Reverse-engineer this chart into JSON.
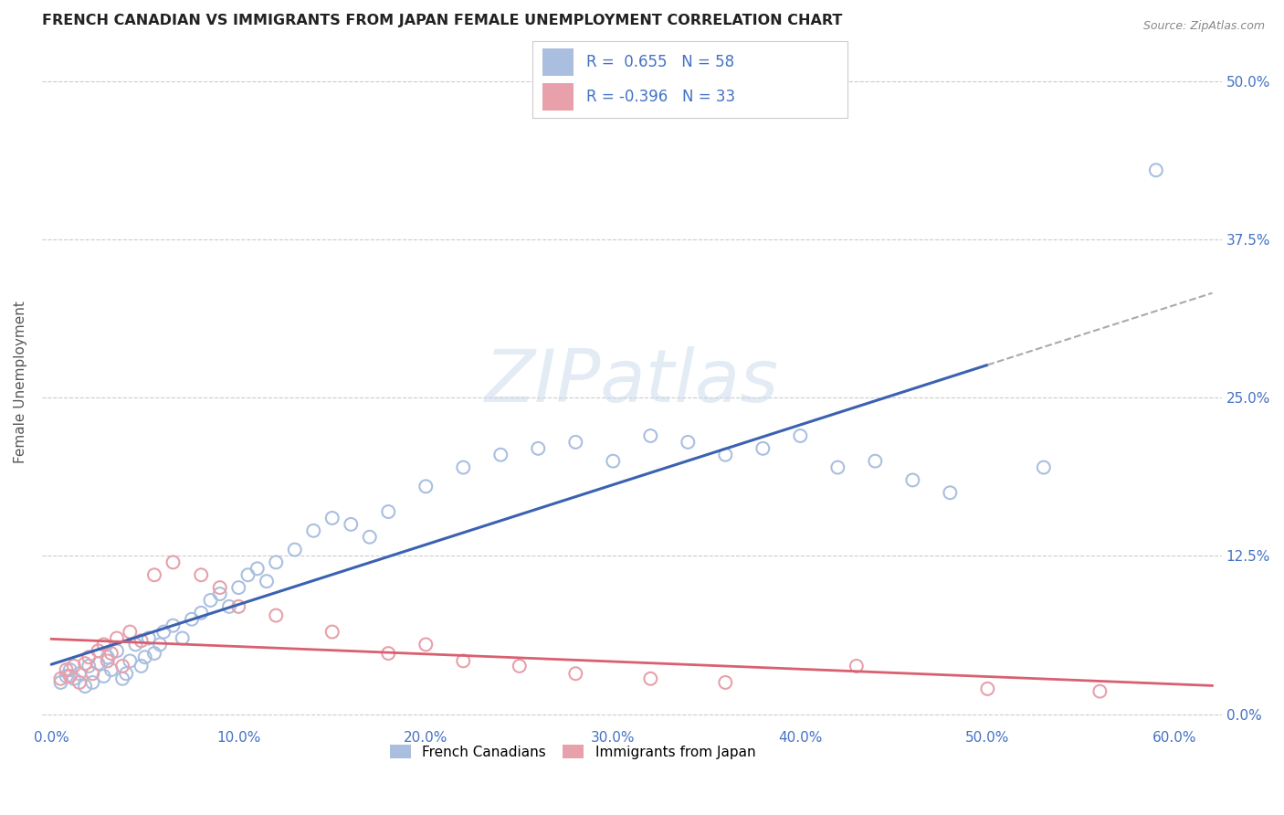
{
  "title": "FRENCH CANADIAN VS IMMIGRANTS FROM JAPAN FEMALE UNEMPLOYMENT CORRELATION CHART",
  "source": "Source: ZipAtlas.com",
  "ylabel": "Female Unemployment",
  "x_tick_labels": [
    "0.0%",
    "10.0%",
    "20.0%",
    "30.0%",
    "40.0%",
    "50.0%",
    "60.0%"
  ],
  "x_tick_values": [
    0.0,
    0.1,
    0.2,
    0.3,
    0.4,
    0.5,
    0.6
  ],
  "y_tick_labels": [
    "0.0%",
    "12.5%",
    "25.0%",
    "37.5%",
    "50.0%"
  ],
  "y_tick_values": [
    0.0,
    0.125,
    0.25,
    0.375,
    0.5
  ],
  "xlim": [
    -0.005,
    0.625
  ],
  "ylim": [
    -0.01,
    0.535
  ],
  "legend_bottom_labels": [
    "French Canadians",
    "Immigrants from Japan"
  ],
  "fc_color": "#aabfdf",
  "jp_color": "#e8a0aa",
  "fc_line_color": "#3a62b0",
  "jp_line_color": "#d96070",
  "grid_color": "#cccccc",
  "fc_scatter_x": [
    0.005,
    0.008,
    0.01,
    0.012,
    0.015,
    0.018,
    0.02,
    0.022,
    0.025,
    0.028,
    0.03,
    0.032,
    0.035,
    0.038,
    0.04,
    0.042,
    0.045,
    0.048,
    0.05,
    0.052,
    0.055,
    0.058,
    0.06,
    0.065,
    0.07,
    0.075,
    0.08,
    0.085,
    0.09,
    0.095,
    0.1,
    0.105,
    0.11,
    0.115,
    0.12,
    0.13,
    0.14,
    0.15,
    0.16,
    0.17,
    0.18,
    0.2,
    0.22,
    0.24,
    0.26,
    0.28,
    0.3,
    0.32,
    0.34,
    0.36,
    0.38,
    0.4,
    0.42,
    0.44,
    0.46,
    0.48,
    0.53,
    0.59
  ],
  "fc_scatter_y": [
    0.025,
    0.03,
    0.035,
    0.028,
    0.032,
    0.022,
    0.038,
    0.025,
    0.04,
    0.03,
    0.045,
    0.035,
    0.05,
    0.028,
    0.032,
    0.042,
    0.055,
    0.038,
    0.045,
    0.06,
    0.048,
    0.055,
    0.065,
    0.07,
    0.06,
    0.075,
    0.08,
    0.09,
    0.095,
    0.085,
    0.1,
    0.11,
    0.115,
    0.105,
    0.12,
    0.13,
    0.145,
    0.155,
    0.15,
    0.14,
    0.16,
    0.18,
    0.195,
    0.205,
    0.21,
    0.215,
    0.2,
    0.22,
    0.215,
    0.205,
    0.21,
    0.22,
    0.195,
    0.2,
    0.185,
    0.175,
    0.195,
    0.43
  ],
  "jp_scatter_x": [
    0.005,
    0.008,
    0.01,
    0.012,
    0.015,
    0.018,
    0.02,
    0.022,
    0.025,
    0.028,
    0.03,
    0.032,
    0.035,
    0.038,
    0.042,
    0.048,
    0.055,
    0.065,
    0.08,
    0.09,
    0.1,
    0.12,
    0.15,
    0.18,
    0.2,
    0.22,
    0.25,
    0.28,
    0.32,
    0.36,
    0.43,
    0.5,
    0.56
  ],
  "jp_scatter_y": [
    0.028,
    0.035,
    0.03,
    0.038,
    0.025,
    0.04,
    0.045,
    0.032,
    0.05,
    0.055,
    0.042,
    0.048,
    0.06,
    0.038,
    0.065,
    0.058,
    0.11,
    0.12,
    0.11,
    0.1,
    0.085,
    0.078,
    0.065,
    0.048,
    0.055,
    0.042,
    0.038,
    0.032,
    0.028,
    0.025,
    0.038,
    0.02,
    0.018
  ]
}
